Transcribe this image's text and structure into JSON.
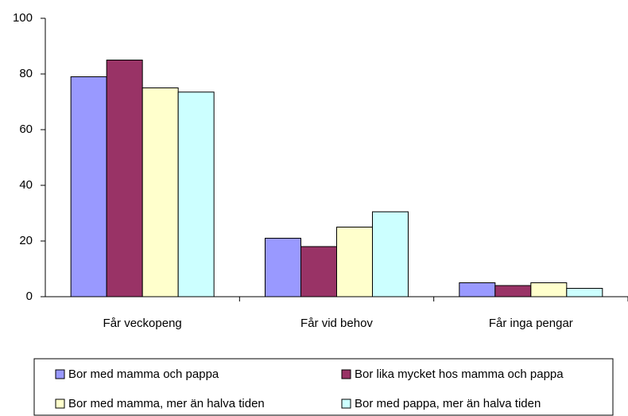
{
  "chart_data": {
    "type": "bar",
    "categories": [
      "Får veckopeng",
      "Får vid behov",
      "Får inga pengar"
    ],
    "series": [
      {
        "name": "Bor med mamma och pappa",
        "color": "#9999ff",
        "values": [
          79,
          21,
          5
        ]
      },
      {
        "name": "Bor lika mycket hos mamma och pappa",
        "color": "#993366",
        "values": [
          85,
          18,
          4
        ]
      },
      {
        "name": "Bor med mamma, mer än halva tiden",
        "color": "#ffffcc",
        "values": [
          75,
          25,
          5
        ]
      },
      {
        "name": "Bor med pappa, mer än halva tiden",
        "color": "#ccffff",
        "values": [
          73.5,
          30.5,
          3
        ]
      }
    ],
    "ylim": [
      0,
      100
    ],
    "yticks": [
      0,
      20,
      40,
      60,
      80,
      100
    ],
    "grid": false,
    "legend": "bottom"
  }
}
